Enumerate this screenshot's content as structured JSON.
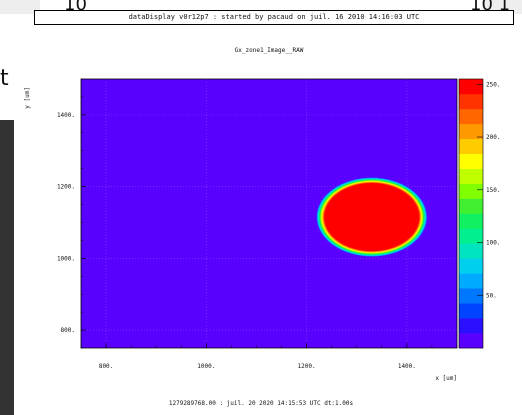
{
  "window_title": "dataDisplay v0r12p7 : started by pacaud on juil. 16 2010 14:16:03 UTC",
  "background_fragments": {
    "left_letter": "t",
    "top_left": "10",
    "top_right": "10 1"
  },
  "chart_data": {
    "type": "heatmap",
    "title": "Gx_zone1_Image__RAW",
    "xlabel": "x [um]",
    "ylabel": "y [um]",
    "xlim": [
      750,
      1500
    ],
    "ylim": [
      750,
      1500
    ],
    "x_ticks": [
      800,
      1000,
      1200,
      1400
    ],
    "x_tick_labels": [
      "800.",
      "1000.",
      "1200.",
      "1400."
    ],
    "y_ticks": [
      800,
      1000,
      1200,
      1400
    ],
    "y_tick_labels": [
      "800.",
      "1000.",
      "1200.",
      "1400."
    ],
    "background_value": 0,
    "spot": {
      "center_x": 1330,
      "center_y": 1115,
      "radius_x": 110,
      "radius_y": 110,
      "peak_value": 255
    },
    "colorbar": {
      "range": [
        0,
        255
      ],
      "ticks": [
        50,
        100,
        150,
        200,
        250
      ],
      "tick_labels": [
        "50.",
        "100.",
        "150.",
        "200.",
        "250."
      ],
      "colors": [
        "#5a00ff",
        "#2a10ff",
        "#0044ff",
        "#0077ff",
        "#00aaff",
        "#00d0ee",
        "#00e4c0",
        "#00f090",
        "#10f060",
        "#40f030",
        "#80ff00",
        "#c0ff00",
        "#ffff00",
        "#ffcc00",
        "#ff9900",
        "#ff6600",
        "#ff3300",
        "#ff0000"
      ]
    },
    "grid": true
  },
  "footer": "1279289768.00 : juil. 20 2020 14:15:53 UTC dt:1.00s"
}
